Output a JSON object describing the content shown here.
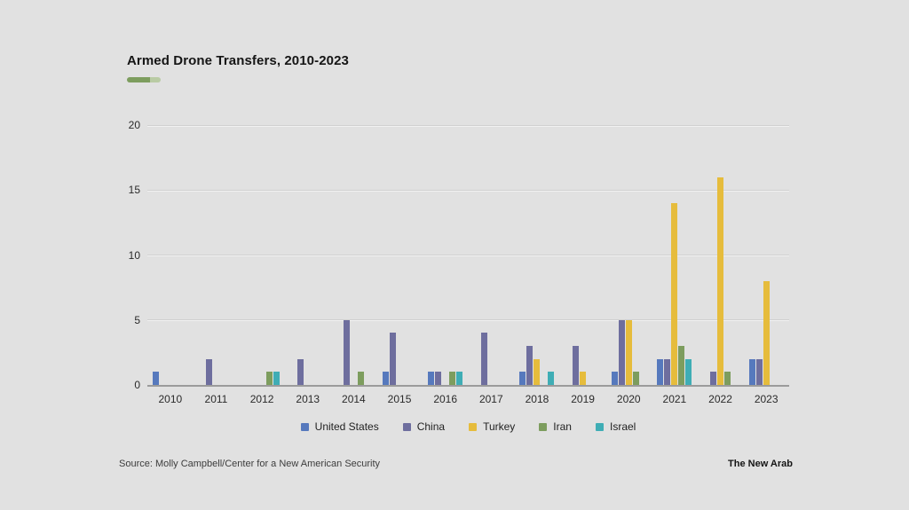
{
  "title": "Armed Drone Transfers, 2010-2023",
  "source": "Source: Molly Campbell/Center for a New American Security",
  "brand": "The New Arab",
  "colors": {
    "background": "#e1e1e1",
    "underline_dark": "#7d9d5e",
    "underline_light": "#b9cba4",
    "axis": "#9b9b9b",
    "grid": "#d0d0d0"
  },
  "chart_data": {
    "type": "bar",
    "title": "Armed Drone Transfers, 2010-2023",
    "categories": [
      "2010",
      "2011",
      "2012",
      "2013",
      "2014",
      "2015",
      "2016",
      "2017",
      "2018",
      "2019",
      "2020",
      "2021",
      "2022",
      "2023"
    ],
    "series": [
      {
        "name": "United States",
        "color": "#5679bd",
        "values": [
          1,
          0,
          0,
          0,
          0,
          1,
          1,
          0,
          1,
          0,
          1,
          2,
          0,
          2
        ]
      },
      {
        "name": "China",
        "color": "#6e6e9e",
        "values": [
          0,
          2,
          0,
          2,
          5,
          4,
          1,
          4,
          3,
          3,
          5,
          2,
          1,
          2
        ]
      },
      {
        "name": "Turkey",
        "color": "#e6bc3c",
        "values": [
          0,
          0,
          0,
          0,
          0,
          0,
          0,
          0,
          2,
          1,
          5,
          14,
          16,
          8
        ]
      },
      {
        "name": "Iran",
        "color": "#7d9d5e",
        "values": [
          0,
          0,
          1,
          0,
          1,
          0,
          1,
          0,
          0,
          0,
          1,
          3,
          1,
          0
        ]
      },
      {
        "name": "Israel",
        "color": "#3fadb5",
        "values": [
          0,
          0,
          1,
          0,
          0,
          0,
          1,
          0,
          1,
          0,
          0,
          2,
          0,
          0
        ]
      }
    ],
    "y_ticks": [
      0,
      5,
      10,
      15,
      20
    ],
    "ylim": [
      0,
      20
    ],
    "xlabel": "",
    "ylabel": "",
    "grid": true,
    "legend_position": "bottom"
  }
}
